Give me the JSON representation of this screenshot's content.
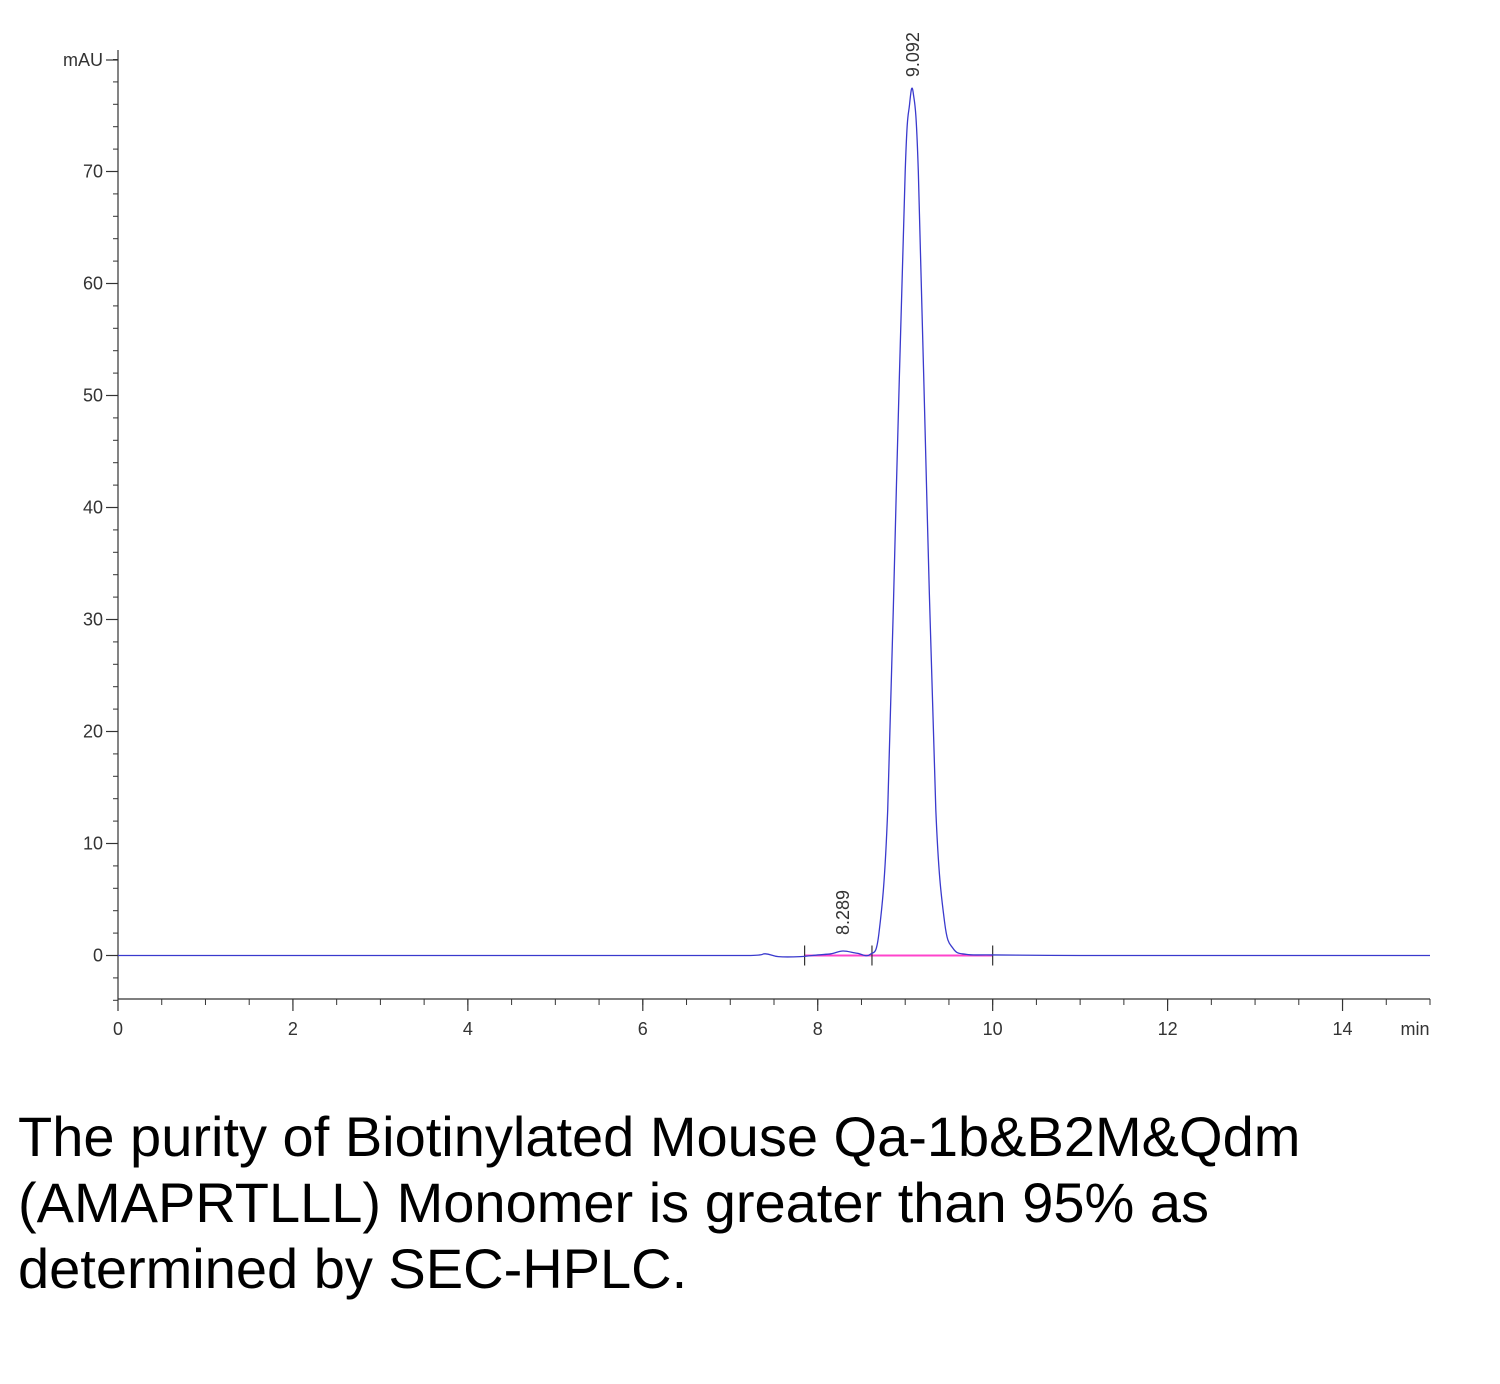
{
  "chart_data": {
    "type": "line",
    "title": "",
    "xlabel": "min",
    "ylabel": "mAU",
    "xlim": [
      0,
      15
    ],
    "ylim": [
      -4,
      81
    ],
    "x_ticks": [
      0,
      2,
      4,
      6,
      8,
      10,
      12,
      14
    ],
    "y_ticks": [
      0,
      10,
      20,
      30,
      40,
      50,
      60,
      70
    ],
    "grid": false,
    "colors": {
      "signal": "#3a3acd",
      "baseline": "#ff44cc",
      "axis": "#333333"
    },
    "series": [
      {
        "x": [
          0,
          2,
          4,
          6,
          7.2,
          7.4,
          7.55,
          7.8,
          8.0,
          8.15,
          8.289,
          8.45,
          8.6,
          8.7,
          8.8,
          8.9,
          9.0,
          9.05,
          9.092,
          9.15,
          9.25,
          9.35,
          9.45,
          9.55,
          9.7,
          10.0,
          11.0,
          12.0,
          13.0,
          15.0
        ],
        "values": [
          0,
          0,
          0,
          0,
          0,
          0.15,
          -0.1,
          -0.1,
          0.05,
          0.15,
          0.4,
          0.2,
          0.1,
          2.0,
          13,
          42,
          70,
          76,
          77,
          70,
          40,
          13,
          3.0,
          0.6,
          0.1,
          0.05,
          0,
          0,
          0,
          0
        ]
      }
    ],
    "peaks": [
      {
        "label": "8.289",
        "x": 8.289,
        "y": 0.4
      },
      {
        "label": "9.092",
        "x": 9.092,
        "y": 77
      }
    ],
    "integration_baseline": {
      "x": [
        7.85,
        10.0
      ],
      "markers": [
        7.85,
        8.62,
        10.0
      ]
    }
  },
  "caption": "The purity of Biotinylated Mouse Qa-1b&B2M&Qdm (AMAPRTLLL) Monomer is greater than 95% as determined by SEC-HPLC."
}
